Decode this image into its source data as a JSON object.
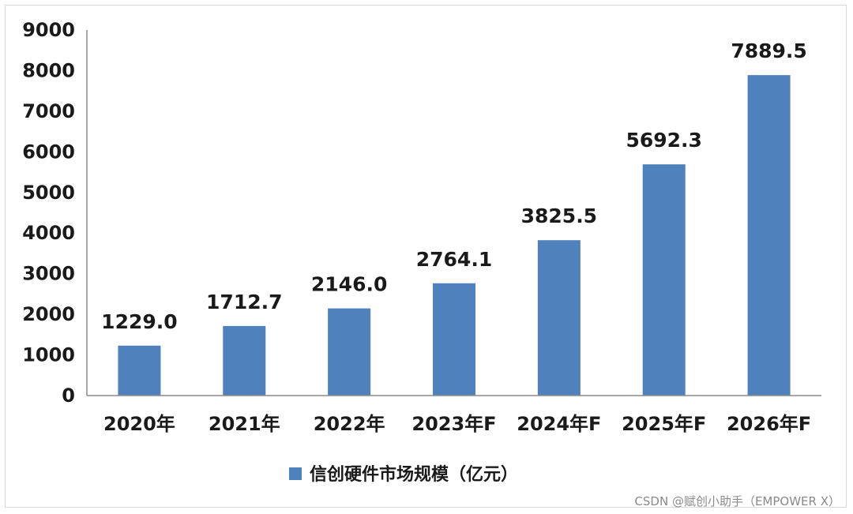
{
  "chart_data": {
    "type": "bar",
    "categories": [
      "2020年",
      "2021年",
      "2022年",
      "2023年F",
      "2024年F",
      "2025年F",
      "2026年F"
    ],
    "series": [
      {
        "name": "信创硬件市场规模（亿元）",
        "values": [
          1229.0,
          1712.7,
          2146.0,
          2764.1,
          3825.5,
          5692.3,
          7889.5
        ]
      }
    ],
    "data_labels": [
      "1229.0",
      "1712.7",
      "2146.0",
      "2764.1",
      "3825.5",
      "5692.3",
      "7889.5"
    ],
    "yticks": [
      "0",
      "1000",
      "2000",
      "3000",
      "4000",
      "5000",
      "6000",
      "7000",
      "8000",
      "9000"
    ],
    "ylim": [
      0,
      9000
    ],
    "title": "",
    "xlabel": "",
    "ylabel": "",
    "grid": false,
    "legend_position": "bottom-center",
    "bar_color": "#4f81bd",
    "axis_color": "#8c8c8c"
  },
  "watermark": "CSDN @赋创小助手（EMPOWER X）"
}
